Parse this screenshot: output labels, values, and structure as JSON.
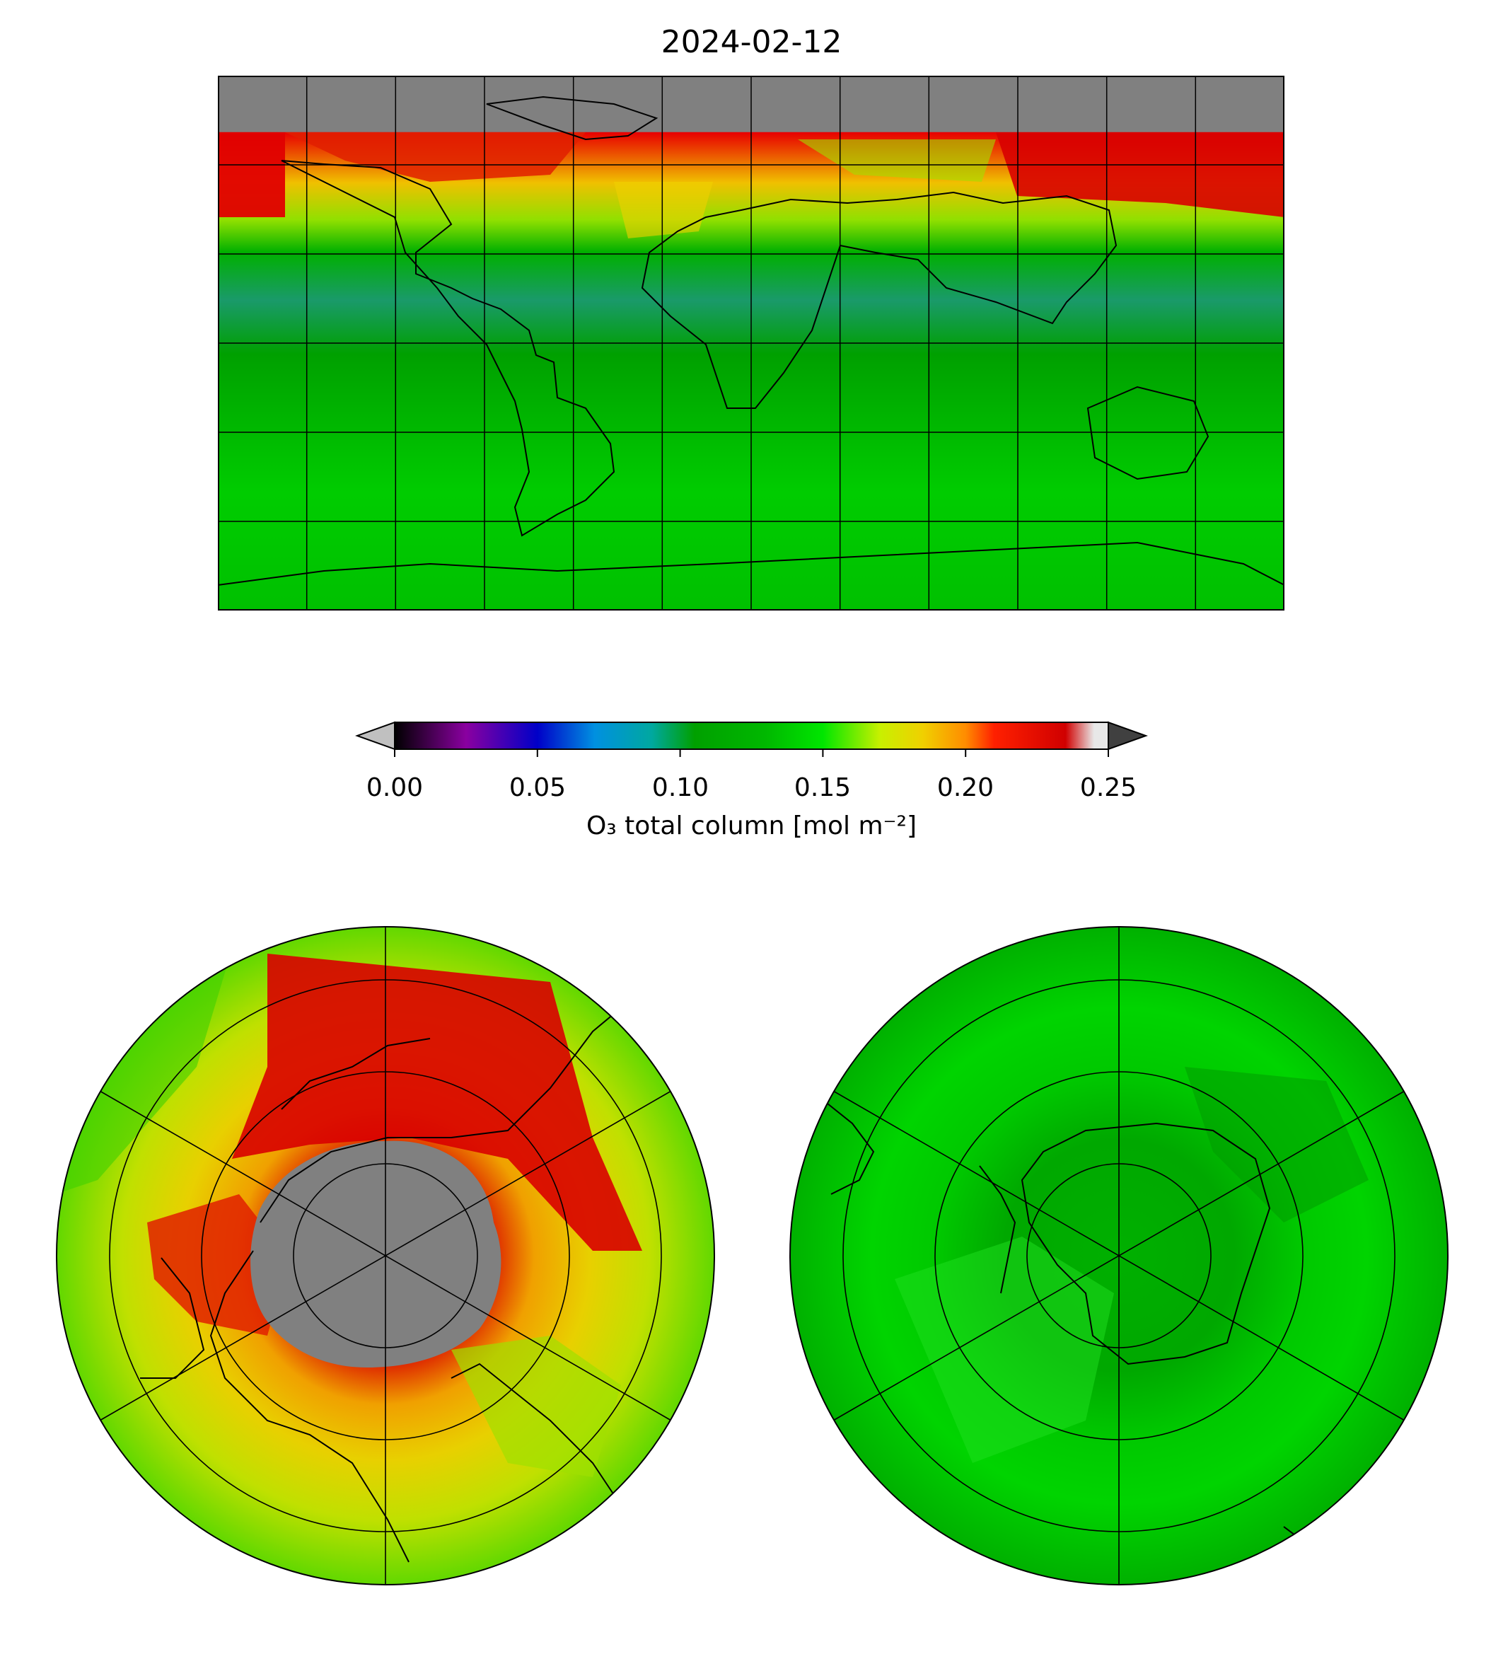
{
  "title": "2024-02-12",
  "colorbar": {
    "label": "O₃ total column [mol m⁻²]",
    "min": 0.0,
    "max": 0.25,
    "ticks": [
      "0.00",
      "0.05",
      "0.10",
      "0.15",
      "0.20",
      "0.25"
    ],
    "extend": "both",
    "under_color": "#c0c0c0",
    "over_color": "#404040",
    "stops": [
      {
        "v": 0.0,
        "c": "#000000"
      },
      {
        "v": 0.025,
        "c": "#8a00a0"
      },
      {
        "v": 0.05,
        "c": "#0000c8"
      },
      {
        "v": 0.07,
        "c": "#0090e0"
      },
      {
        "v": 0.09,
        "c": "#00a8a0"
      },
      {
        "v": 0.105,
        "c": "#00a000"
      },
      {
        "v": 0.13,
        "c": "#00b800"
      },
      {
        "v": 0.15,
        "c": "#00e600"
      },
      {
        "v": 0.17,
        "c": "#c8f000"
      },
      {
        "v": 0.185,
        "c": "#f0d000"
      },
      {
        "v": 0.2,
        "c": "#ff8c00"
      },
      {
        "v": 0.21,
        "c": "#ff2000"
      },
      {
        "v": 0.235,
        "c": "#d00000"
      },
      {
        "v": 0.245,
        "c": "#e8e8e8"
      }
    ]
  },
  "colors": {
    "no_data": "#808080",
    "coastline": "#000000",
    "graticule": "#000000",
    "tropics": "#00b000",
    "tropical_band": "#1a9a6a",
    "north_high": "#d80000",
    "north_mid": "#f0b000",
    "south": "#00cc00"
  },
  "map_main": {
    "projection": "equirectangular",
    "lon_range": [
      -180,
      180
    ],
    "lat_range": [
      -90,
      90
    ],
    "graticule_step_deg": 30,
    "no_data_north_of_lat": 71
  },
  "polar_maps": [
    {
      "name": "north",
      "projection": "north-polar-stereographic",
      "boundary_lat": 0
    },
    {
      "name": "south",
      "projection": "south-polar-stereographic",
      "boundary_lat": 0
    }
  ]
}
